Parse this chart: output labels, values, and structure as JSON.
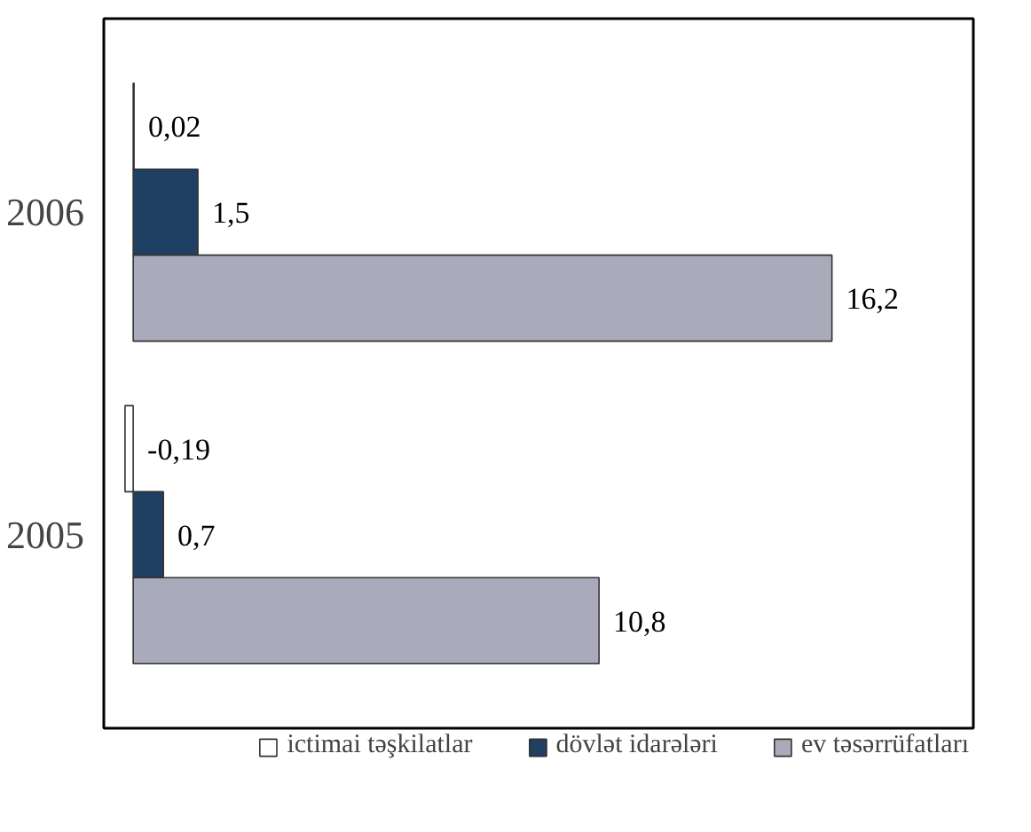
{
  "chart_data": {
    "type": "bar",
    "orientation": "horizontal",
    "categories": [
      "2006",
      "2005"
    ],
    "series": [
      {
        "name": "ictimai təşkilatlar",
        "color": "#ffffff",
        "values": [
          0.02,
          -0.19
        ],
        "value_labels": [
          "0,02",
          "-0,19"
        ]
      },
      {
        "name": "dövlət idarələri",
        "color": "#1f3f63",
        "values": [
          1.5,
          0.7
        ],
        "value_labels": [
          "1,5",
          "0,7"
        ]
      },
      {
        "name": "ev təsərrüfatları",
        "color": "#a9abbb",
        "values": [
          16.2,
          10.8
        ],
        "value_labels": [
          "16,2",
          "10,8"
        ]
      }
    ],
    "legend": "bottom"
  }
}
